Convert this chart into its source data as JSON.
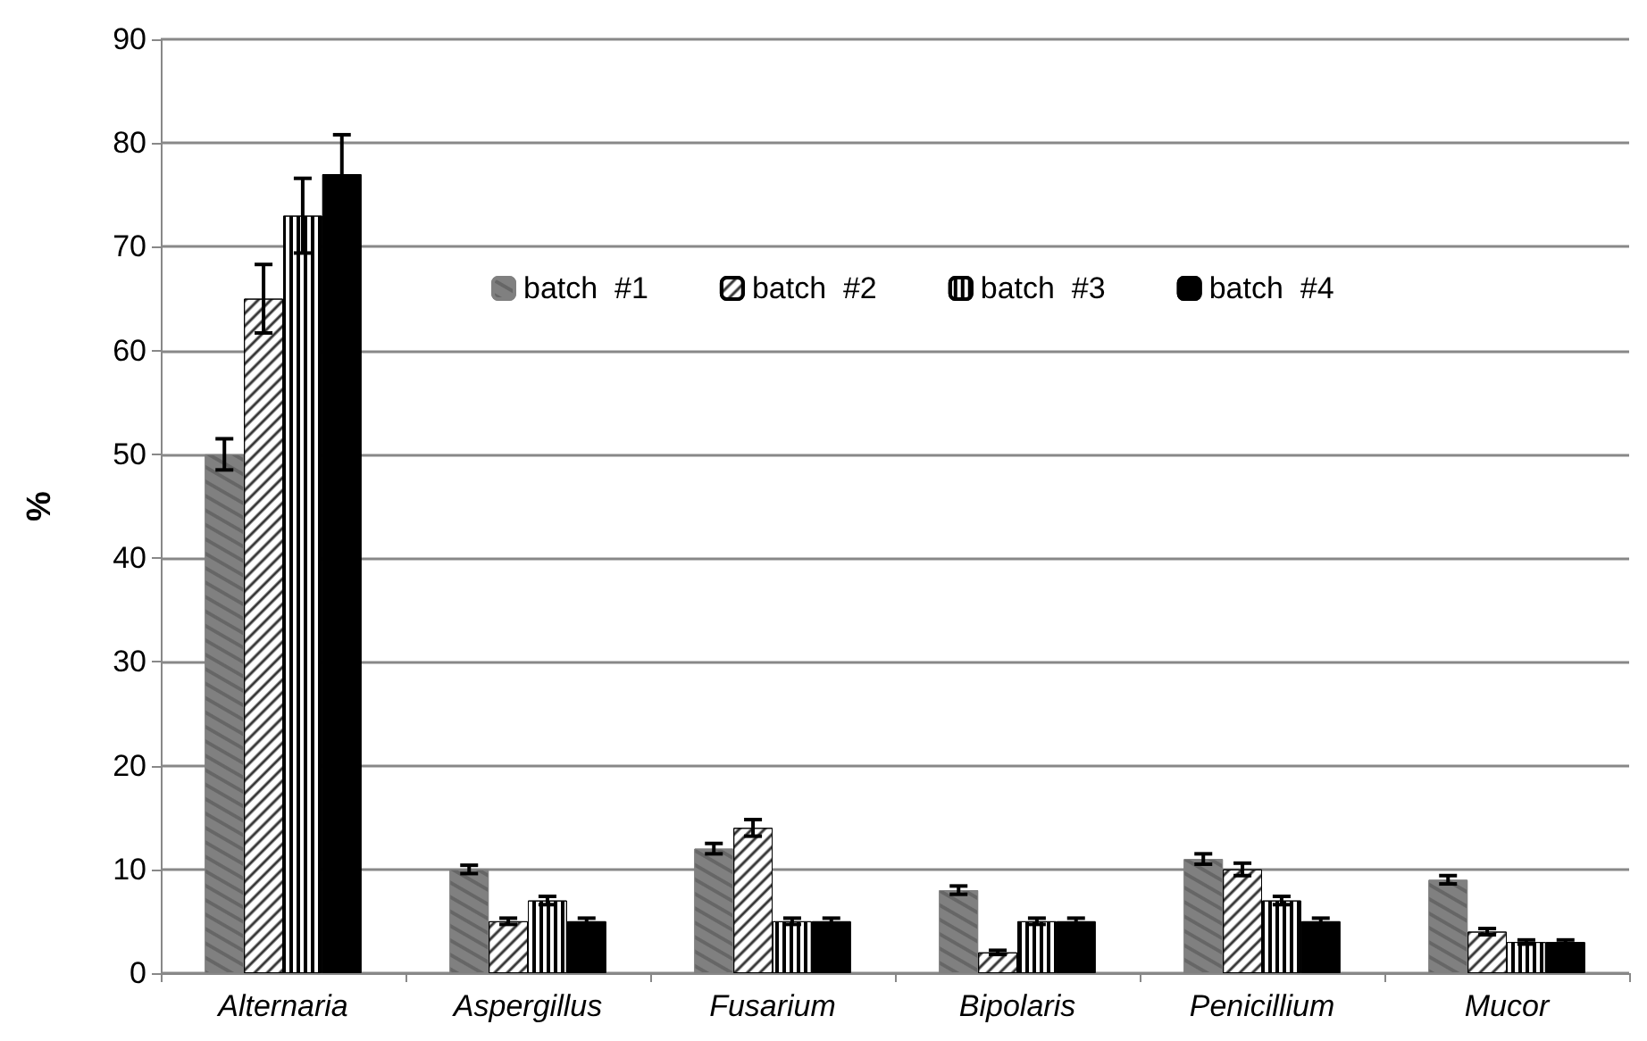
{
  "chart_data": {
    "type": "bar",
    "ylabel": "%",
    "categories": [
      "Alternaria",
      "Aspergillus",
      "Fusarium",
      "Bipolaris",
      "Penicillium",
      "Mucor"
    ],
    "series": [
      {
        "name": "batch  #1",
        "color": "#808080",
        "values": [
          50,
          10,
          12,
          8,
          11,
          9
        ],
        "errors": [
          1.5,
          0.4,
          0.5,
          0.4,
          0.5,
          0.4
        ]
      },
      {
        "name": "batch  #2",
        "color": "#ffffff",
        "values": [
          65,
          5,
          14,
          2,
          10,
          4
        ],
        "errors": [
          3.3,
          0.3,
          0.8,
          0.2,
          0.6,
          0.3
        ]
      },
      {
        "name": "batch  #3",
        "color": "#ffffff",
        "values": [
          73,
          7,
          5,
          5,
          7,
          3
        ],
        "errors": [
          3.6,
          0.4,
          0.3,
          0.3,
          0.4,
          0.2
        ]
      },
      {
        "name": "batch  #4",
        "color": "#000000",
        "values": [
          77,
          5,
          5,
          5,
          5,
          3
        ],
        "errors": [
          3.8,
          0.3,
          0.3,
          0.3,
          0.3,
          0.2
        ]
      }
    ],
    "ylim": [
      0,
      90
    ],
    "yticks": [
      0,
      10,
      20,
      30,
      40,
      50,
      60,
      70,
      80,
      90
    ],
    "grid": "y",
    "legend": "top right"
  }
}
